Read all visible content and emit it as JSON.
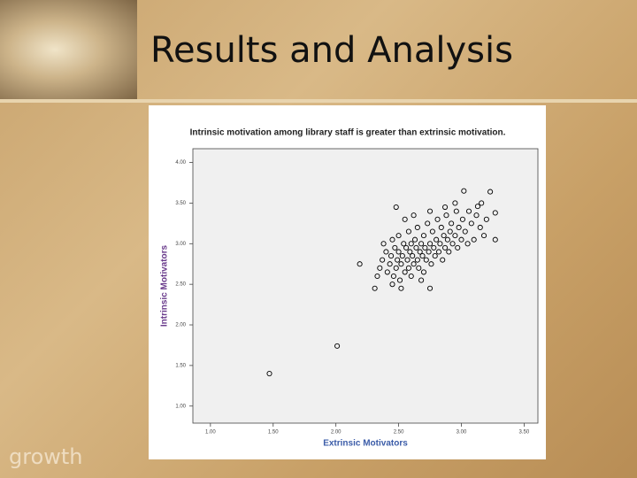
{
  "slide_title": "Results and Analysis",
  "footer_word": "growth",
  "chart_data": {
    "type": "scatter",
    "title": "Intrinsic motivation among library staff is greater than extrinsic motivation.",
    "x_label": "Extrinsic Motivators",
    "y_label": "Intrinsic Motivators",
    "color": "#000000",
    "grid": false,
    "xlim": [
      0.86,
      3.61
    ],
    "ylim": [
      0.79,
      4.17
    ],
    "xticks": [
      {
        "value": 1,
        "label": "1.00"
      },
      {
        "value": 1.5,
        "label": "1.50"
      },
      {
        "value": 2,
        "label": "2.00"
      },
      {
        "value": 2.5,
        "label": "2.50"
      },
      {
        "value": 3,
        "label": "3.00"
      },
      {
        "value": 3.5,
        "label": "3.50"
      }
    ],
    "yticks": [
      {
        "value": 1,
        "label": "1.00"
      },
      {
        "value": 1.5,
        "label": "1.50"
      },
      {
        "value": 2,
        "label": "2.00"
      },
      {
        "value": 2.5,
        "label": "2.50"
      },
      {
        "value": 3,
        "label": "3.00"
      },
      {
        "value": 3.5,
        "label": "3.50"
      },
      {
        "value": 4,
        "label": "4.00"
      }
    ],
    "x": [
      1.47,
      2.01,
      2.19,
      2.31,
      2.75,
      2.48,
      3.02,
      3.23,
      3.27,
      3.27,
      3.16,
      3.13,
      2.33,
      2.35,
      2.37,
      2.38,
      2.4,
      2.41,
      2.43,
      2.44,
      2.45,
      2.46,
      2.47,
      2.48,
      2.49,
      2.5,
      2.5,
      2.51,
      2.52,
      2.53,
      2.54,
      2.55,
      2.56,
      2.57,
      2.58,
      2.58,
      2.59,
      2.6,
      2.6,
      2.61,
      2.62,
      2.63,
      2.64,
      2.65,
      2.65,
      2.66,
      2.67,
      2.68,
      2.69,
      2.7,
      2.7,
      2.71,
      2.72,
      2.73,
      2.74,
      2.75,
      2.76,
      2.77,
      2.78,
      2.79,
      2.8,
      2.81,
      2.82,
      2.83,
      2.84,
      2.85,
      2.86,
      2.87,
      2.88,
      2.89,
      2.9,
      2.91,
      2.92,
      2.93,
      2.95,
      2.96,
      2.97,
      2.98,
      3.0,
      3.01,
      3.03,
      3.05,
      3.06,
      3.08,
      3.1,
      3.12,
      3.15,
      3.18,
      3.2,
      2.55,
      2.62,
      2.45,
      2.52,
      2.68,
      2.75,
      2.95,
      2.87
    ],
    "values": [
      1.4,
      1.74,
      2.75,
      2.45,
      2.45,
      3.45,
      3.65,
      3.64,
      3.05,
      3.38,
      3.5,
      3.46,
      2.6,
      2.7,
      2.8,
      3.0,
      2.9,
      2.65,
      2.75,
      2.85,
      3.05,
      2.6,
      2.95,
      2.7,
      2.8,
      2.9,
      3.1,
      2.55,
      2.75,
      2.85,
      3.0,
      2.65,
      2.95,
      2.8,
      3.15,
      2.7,
      2.9,
      3.0,
      2.6,
      2.85,
      2.75,
      3.05,
      2.95,
      2.8,
      3.2,
      2.7,
      2.9,
      3.0,
      2.85,
      3.1,
      2.65,
      2.95,
      2.8,
      3.25,
      2.9,
      3.0,
      2.75,
      3.15,
      2.95,
      2.85,
      3.05,
      3.3,
      2.9,
      3.0,
      3.2,
      2.8,
      3.1,
      2.95,
      3.35,
      3.05,
      2.9,
      3.15,
      3.25,
      3.0,
      3.1,
      3.4,
      2.95,
      3.2,
      3.05,
      3.3,
      3.15,
      3.0,
      3.4,
      3.25,
      3.05,
      3.35,
      3.2,
      3.1,
      3.3,
      3.3,
      3.35,
      2.5,
      2.45,
      2.55,
      3.4,
      3.5,
      3.45
    ]
  }
}
